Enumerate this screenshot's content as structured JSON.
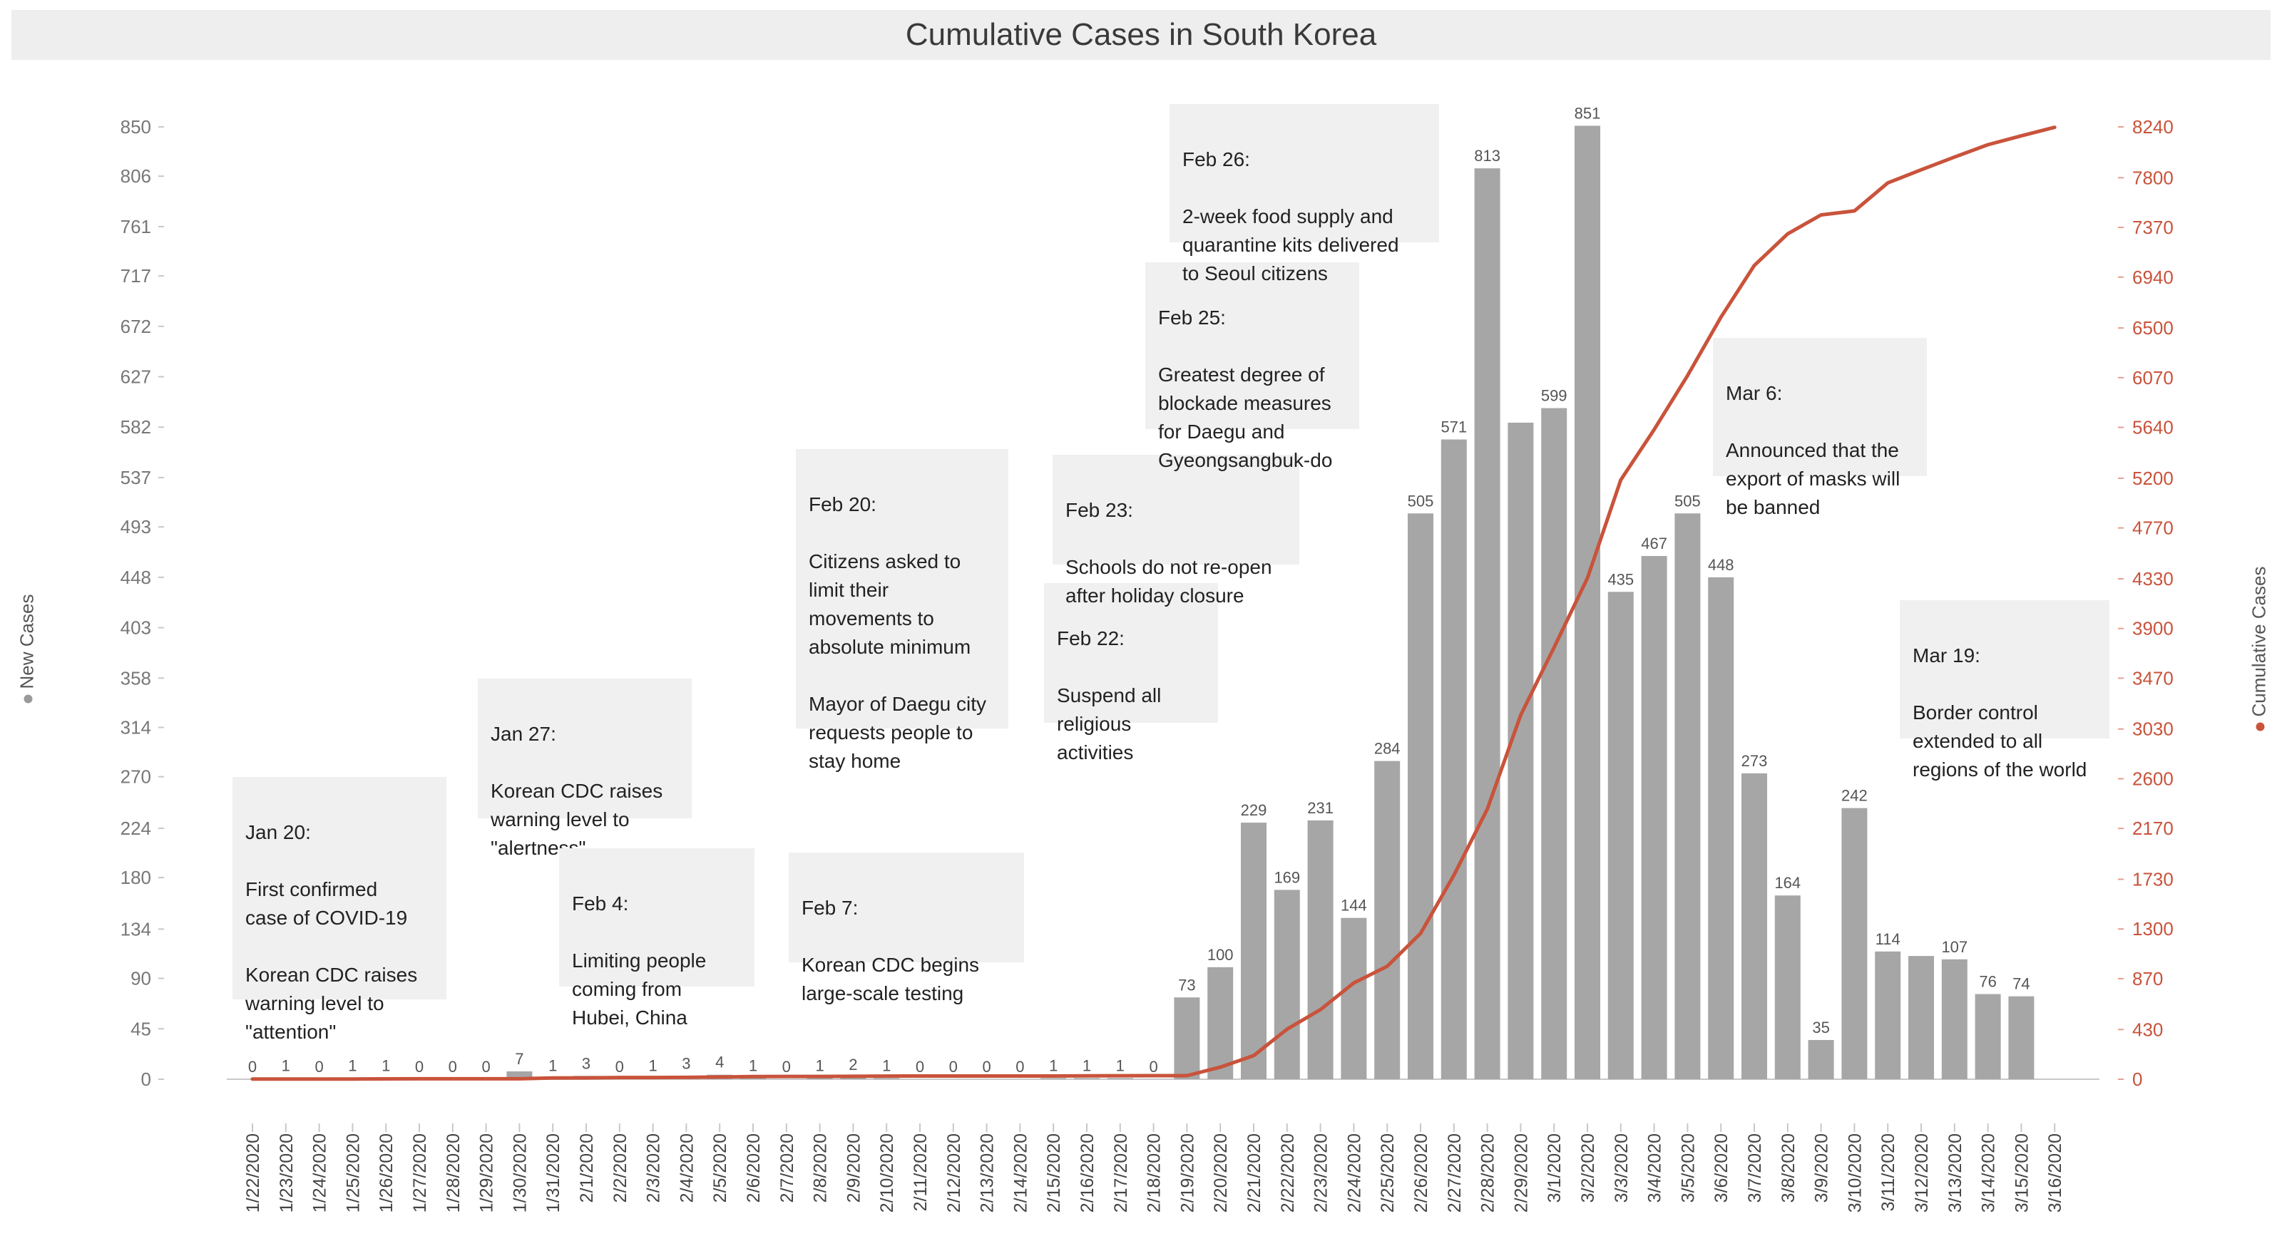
{
  "chart_data": {
    "type": "bar",
    "title": "Cumulative Cases in South Korea",
    "y_left_label": "New Cases",
    "y_right_label": "Cumulative Cases",
    "y_left_ticks": [
      0,
      45,
      90,
      134,
      180,
      224,
      270,
      314,
      358,
      403,
      448,
      493,
      537,
      582,
      627,
      672,
      717,
      761,
      806,
      850
    ],
    "y_right_ticks": [
      0,
      430,
      870,
      1300,
      1730,
      2170,
      2600,
      3030,
      3470,
      3900,
      4330,
      4770,
      5200,
      5640,
      6070,
      6500,
      6940,
      7370,
      7800,
      8240
    ],
    "ylim_left": [
      0,
      850
    ],
    "ylim_right": [
      0,
      8240
    ],
    "categories": [
      "1/22/2020",
      "1/23/2020",
      "1/24/2020",
      "1/25/2020",
      "1/26/2020",
      "1/27/2020",
      "1/28/2020",
      "1/29/2020",
      "1/30/2020",
      "1/31/2020",
      "2/1/2020",
      "2/2/2020",
      "2/3/2020",
      "2/4/2020",
      "2/5/2020",
      "2/6/2020",
      "2/7/2020",
      "2/8/2020",
      "2/9/2020",
      "2/10/2020",
      "2/11/2020",
      "2/12/2020",
      "2/13/2020",
      "2/14/2020",
      "2/15/2020",
      "2/16/2020",
      "2/17/2020",
      "2/18/2020",
      "2/19/2020",
      "2/20/2020",
      "2/21/2020",
      "2/22/2020",
      "2/23/2020",
      "2/24/2020",
      "2/25/2020",
      "2/26/2020",
      "2/27/2020",
      "2/28/2020",
      "2/29/2020",
      "3/1/2020",
      "3/2/2020",
      "3/3/2020",
      "3/4/2020",
      "3/5/2020",
      "3/6/2020",
      "3/7/2020",
      "3/8/2020",
      "3/9/2020",
      "3/10/2020",
      "3/11/2020",
      "3/12/2020",
      "3/13/2020",
      "3/14/2020",
      "3/15/2020",
      "3/16/2020"
    ],
    "series": [
      {
        "name": "New Cases",
        "type": "bar",
        "color": "#a6a6a6",
        "values": [
          0,
          1,
          0,
          1,
          1,
          0,
          0,
          0,
          7,
          1,
          3,
          0,
          1,
          3,
          4,
          1,
          0,
          1,
          2,
          1,
          0,
          0,
          0,
          0,
          1,
          1,
          1,
          0,
          73,
          100,
          229,
          169,
          231,
          144,
          284,
          505,
          571,
          813,
          586,
          599,
          851,
          435,
          467,
          505,
          448,
          273,
          164,
          35,
          242,
          114,
          110,
          107,
          76,
          74,
          null
        ],
        "labels": [
          "0",
          "1",
          "0",
          "1",
          "1",
          "0",
          "0",
          "0",
          "7",
          "1",
          "3",
          "0",
          "1",
          "3",
          "4",
          "1",
          "0",
          "1",
          "2",
          "1",
          "0",
          "0",
          "0",
          "0",
          "1",
          "1",
          "1",
          "0",
          "73",
          "100",
          "229",
          "169",
          "231",
          "144",
          "284",
          "505",
          "571",
          "813",
          "",
          "599",
          "851",
          "435",
          "467",
          "505",
          "448",
          "273",
          "164",
          "35",
          "242",
          "114",
          "",
          "107",
          "76",
          "74",
          ""
        ]
      },
      {
        "name": "Cumulative Cases",
        "type": "line",
        "color": "#c9533b",
        "values": [
          1,
          1,
          2,
          2,
          3,
          4,
          4,
          4,
          4,
          11,
          12,
          15,
          15,
          16,
          19,
          23,
          24,
          24,
          25,
          27,
          28,
          28,
          28,
          28,
          28,
          29,
          30,
          31,
          31,
          104,
          204,
          433,
          602,
          833,
          977,
          1261,
          1766,
          2337,
          3150,
          3736,
          4335,
          5186,
          5621,
          6088,
          6593,
          7041,
          7314,
          7478,
          7513,
          7755,
          7869,
          7979,
          8086,
          8162,
          8236
        ]
      }
    ],
    "annotations": [
      {
        "date": "Jan 20:",
        "text": "First confirmed\ncase of COVID-19\n\nKorean CDC raises\nwarning level to\n\"attention\""
      },
      {
        "date": "Jan 27:",
        "text": "Korean CDC raises\nwarning level to\n\"alertness\""
      },
      {
        "date": "Feb 4:",
        "text": "Limiting people\ncoming from\nHubei, China"
      },
      {
        "date": "Feb 7:",
        "text": "Korean CDC begins\nlarge-scale testing"
      },
      {
        "date": "Feb 20:",
        "text": "Citizens asked to\nlimit their\nmovements to\nabsolute minimum\n\nMayor of Daegu city\nrequests people to\nstay home"
      },
      {
        "date": "Feb 22:",
        "text": "Suspend all\nreligious\nactivities"
      },
      {
        "date": "Feb 23:",
        "text": "Schools do not re-open\nafter holiday closure"
      },
      {
        "date": "Feb 25:",
        "text": "Greatest degree of\nblockade measures\nfor Daegu and\nGyeongsangbuk-do"
      },
      {
        "date": "Feb 26:",
        "text": "2-week food supply and\nquarantine kits delivered\nto Seoul citizens"
      },
      {
        "date": "Mar 6:",
        "text": "Announced that the\nexport of masks will\nbe banned"
      },
      {
        "date": "Mar 19:",
        "text": "Border control\nextended to all\nregions of the world"
      }
    ]
  }
}
